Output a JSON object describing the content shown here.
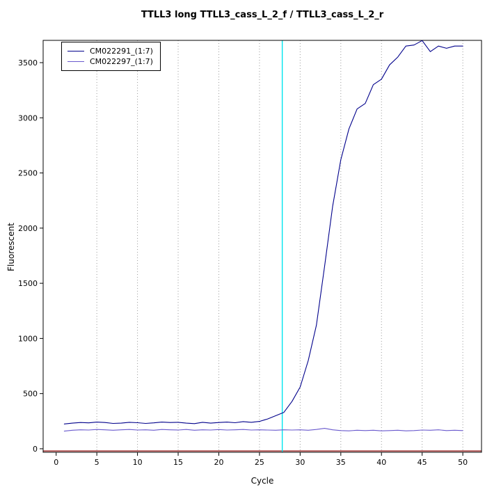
{
  "chart_data": {
    "type": "line",
    "title": "TTLL3 long TTLL3_cass_L_2_f / TTLL3_cass_L_2_r",
    "xlabel": "Cycle",
    "ylabel": "Fluorescent",
    "xlim": [
      -1.6,
      52.3
    ],
    "ylim": [
      -32,
      3702
    ],
    "x_ticks": [
      0,
      5,
      10,
      15,
      20,
      25,
      30,
      35,
      40,
      45,
      50
    ],
    "y_ticks": [
      0,
      500,
      1000,
      1500,
      2000,
      2500,
      3000,
      3500
    ],
    "grid_x": [
      5,
      10,
      15,
      20,
      25,
      30,
      35,
      40,
      45,
      50
    ],
    "grid_on": true,
    "legend_position": "top-left",
    "threshold_line": {
      "x": 27.8,
      "color": "#00e5ee"
    },
    "baseline_line": {
      "y": -20,
      "color": "#8b0000"
    },
    "x": [
      1,
      2,
      3,
      4,
      5,
      6,
      7,
      8,
      9,
      10,
      11,
      12,
      13,
      14,
      15,
      16,
      17,
      18,
      19,
      20,
      21,
      22,
      23,
      24,
      25,
      26,
      27,
      28,
      29,
      30,
      31,
      32,
      33,
      34,
      35,
      36,
      37,
      38,
      39,
      40,
      41,
      42,
      43,
      44,
      45,
      46,
      47,
      48,
      49,
      50
    ],
    "series": [
      {
        "name": "CM022291_(1:7)",
        "color": "#00008b",
        "values": [
          225,
          232,
          238,
          235,
          242,
          238,
          230,
          232,
          240,
          236,
          230,
          235,
          242,
          238,
          240,
          232,
          228,
          240,
          232,
          238,
          242,
          236,
          246,
          240,
          248,
          270,
          300,
          330,
          430,
          560,
          800,
          1120,
          1650,
          2200,
          2620,
          2900,
          3080,
          3130,
          3300,
          3350,
          3480,
          3550,
          3650,
          3660,
          3700,
          3600,
          3650,
          3630,
          3650,
          3650
        ]
      },
      {
        "name": "CM022297_(1:7)",
        "color": "#6959cd",
        "values": [
          160,
          168,
          172,
          170,
          175,
          172,
          168,
          172,
          175,
          170,
          172,
          168,
          175,
          172,
          170,
          175,
          168,
          172,
          170,
          174,
          170,
          172,
          175,
          170,
          172,
          170,
          168,
          172,
          170,
          172,
          168,
          175,
          185,
          172,
          165,
          162,
          168,
          165,
          168,
          162,
          165,
          168,
          162,
          165,
          170,
          168,
          172,
          165,
          168,
          165
        ]
      }
    ]
  }
}
